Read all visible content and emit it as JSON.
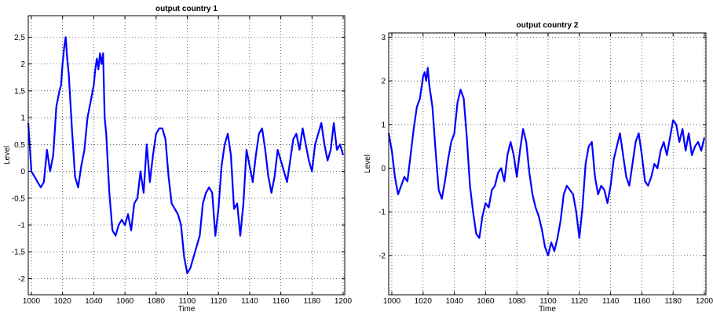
{
  "chart_data": [
    {
      "type": "line",
      "title": "output country 1",
      "xlabel": "Time",
      "ylabel": "Level",
      "xlim": [
        998,
        1201
      ],
      "ylim": [
        -2.3,
        2.9
      ],
      "xticks": [
        1000,
        1020,
        1040,
        1060,
        1080,
        1100,
        1120,
        1140,
        1160,
        1180,
        1200
      ],
      "yticks": [
        -2,
        -1.5,
        -1,
        -0.5,
        0,
        0.5,
        1,
        1.5,
        2,
        2.5
      ],
      "yticklabels": [
        "-2",
        "-1,5",
        "-1",
        "-0,5",
        "0",
        "0,5",
        "1",
        "1,5",
        "2",
        "2,5"
      ],
      "grid": true,
      "color": "#0000ff",
      "series": [
        {
          "x": [
            998,
            1000,
            1002,
            1004,
            1006,
            1008,
            1010,
            1012,
            1014,
            1016,
            1018,
            1019,
            1020,
            1021,
            1022,
            1023,
            1024,
            1026,
            1028,
            1030,
            1032,
            1034,
            1036,
            1038,
            1040,
            1041,
            1042,
            1043,
            1044,
            1045,
            1046,
            1047,
            1048,
            1050,
            1052,
            1054,
            1056,
            1058,
            1060,
            1062,
            1064,
            1066,
            1068,
            1070,
            1072,
            1074,
            1076,
            1078,
            1080,
            1082,
            1084,
            1086,
            1088,
            1090,
            1092,
            1094,
            1096,
            1098,
            1100,
            1102,
            1104,
            1106,
            1108,
            1110,
            1112,
            1114,
            1116,
            1118,
            1120,
            1122,
            1124,
            1126,
            1128,
            1130,
            1132,
            1134,
            1136,
            1138,
            1140,
            1142,
            1144,
            1146,
            1148,
            1150,
            1152,
            1154,
            1156,
            1158,
            1160,
            1162,
            1164,
            1166,
            1168,
            1170,
            1172,
            1174,
            1176,
            1178,
            1180,
            1182,
            1184,
            1186,
            1188,
            1190,
            1192,
            1194,
            1196,
            1198,
            1200
          ],
          "y": [
            0.9,
            0.0,
            -0.1,
            -0.2,
            -0.3,
            -0.2,
            0.4,
            0.0,
            0.3,
            1.2,
            1.5,
            1.6,
            2.0,
            2.3,
            2.5,
            2.1,
            1.8,
            0.8,
            -0.1,
            -0.3,
            0.1,
            0.4,
            1.0,
            1.3,
            1.6,
            1.9,
            2.1,
            1.9,
            2.2,
            2.0,
            2.2,
            1.0,
            0.7,
            -0.4,
            -1.1,
            -1.2,
            -1.0,
            -0.9,
            -1.0,
            -0.8,
            -1.1,
            -0.6,
            -0.5,
            0.0,
            -0.4,
            0.5,
            -0.2,
            0.3,
            0.7,
            0.8,
            0.8,
            0.6,
            -0.1,
            -0.6,
            -0.7,
            -0.8,
            -1.0,
            -1.6,
            -1.9,
            -1.8,
            -1.6,
            -1.4,
            -1.2,
            -0.6,
            -0.4,
            -0.3,
            -0.4,
            -1.2,
            -0.7,
            0.1,
            0.5,
            0.7,
            0.3,
            -0.7,
            -0.6,
            -1.2,
            -0.6,
            0.4,
            0.1,
            -0.2,
            0.3,
            0.7,
            0.8,
            0.4,
            -0.1,
            -0.4,
            -0.1,
            0.4,
            0.2,
            0.0,
            -0.2,
            0.2,
            0.6,
            0.7,
            0.4,
            0.8,
            0.5,
            0.2,
            0.0,
            0.5,
            0.7,
            0.9,
            0.5,
            0.2,
            0.4,
            0.9,
            0.4,
            0.5,
            0.3
          ]
        }
      ]
    },
    {
      "type": "line",
      "title": "output country 2",
      "xlabel": "Time",
      "ylabel": "Level",
      "xlim": [
        998,
        1201
      ],
      "ylim": [
        -2.9,
        3.1
      ],
      "xticks": [
        1000,
        1020,
        1040,
        1060,
        1080,
        1100,
        1120,
        1140,
        1160,
        1180,
        1200
      ],
      "yticks": [
        -2,
        -1,
        0,
        1,
        2,
        3
      ],
      "yticklabels": [
        "-2",
        "-1",
        "0",
        "1",
        "2",
        "3"
      ],
      "grid": true,
      "color": "#0000ff",
      "series": [
        {
          "x": [
            998,
            1000,
            1002,
            1004,
            1006,
            1008,
            1010,
            1012,
            1014,
            1016,
            1018,
            1020,
            1021,
            1022,
            1023,
            1024,
            1026,
            1028,
            1030,
            1032,
            1034,
            1036,
            1038,
            1040,
            1042,
            1044,
            1046,
            1048,
            1050,
            1052,
            1054,
            1056,
            1058,
            1060,
            1062,
            1064,
            1066,
            1068,
            1070,
            1072,
            1074,
            1076,
            1078,
            1080,
            1082,
            1084,
            1086,
            1088,
            1090,
            1092,
            1094,
            1096,
            1098,
            1100,
            1102,
            1104,
            1106,
            1108,
            1110,
            1112,
            1114,
            1116,
            1118,
            1120,
            1122,
            1124,
            1126,
            1128,
            1130,
            1132,
            1134,
            1136,
            1138,
            1140,
            1142,
            1144,
            1146,
            1148,
            1150,
            1152,
            1154,
            1156,
            1158,
            1160,
            1162,
            1164,
            1166,
            1168,
            1170,
            1172,
            1174,
            1176,
            1178,
            1180,
            1182,
            1184,
            1186,
            1188,
            1190,
            1192,
            1194,
            1196,
            1198,
            1200
          ],
          "y": [
            0.8,
            0.4,
            -0.2,
            -0.6,
            -0.4,
            -0.2,
            -0.3,
            0.3,
            0.9,
            1.4,
            1.6,
            2.1,
            2.2,
            2.0,
            2.3,
            1.9,
            1.4,
            0.4,
            -0.5,
            -0.7,
            -0.3,
            0.2,
            0.6,
            0.8,
            1.5,
            1.8,
            1.6,
            0.7,
            -0.4,
            -1.0,
            -1.5,
            -1.6,
            -1.1,
            -0.8,
            -0.9,
            -0.5,
            -0.4,
            -0.1,
            0.0,
            -0.3,
            0.3,
            0.6,
            0.3,
            -0.2,
            0.4,
            0.9,
            0.6,
            -0.1,
            -0.6,
            -0.9,
            -1.1,
            -1.4,
            -1.8,
            -2.0,
            -1.7,
            -1.9,
            -1.6,
            -1.2,
            -0.6,
            -0.4,
            -0.5,
            -0.6,
            -1.0,
            -1.6,
            -0.9,
            0.1,
            0.5,
            0.6,
            -0.2,
            -0.6,
            -0.4,
            -0.5,
            -0.8,
            -0.4,
            0.2,
            0.5,
            0.8,
            0.3,
            -0.2,
            -0.4,
            0.1,
            0.6,
            0.8,
            0.3,
            -0.3,
            -0.4,
            -0.2,
            0.1,
            0.0,
            0.4,
            0.6,
            0.3,
            0.7,
            1.1,
            1.0,
            0.6,
            0.9,
            0.4,
            0.8,
            0.3,
            0.5,
            0.6,
            0.4,
            0.7
          ]
        }
      ]
    }
  ]
}
